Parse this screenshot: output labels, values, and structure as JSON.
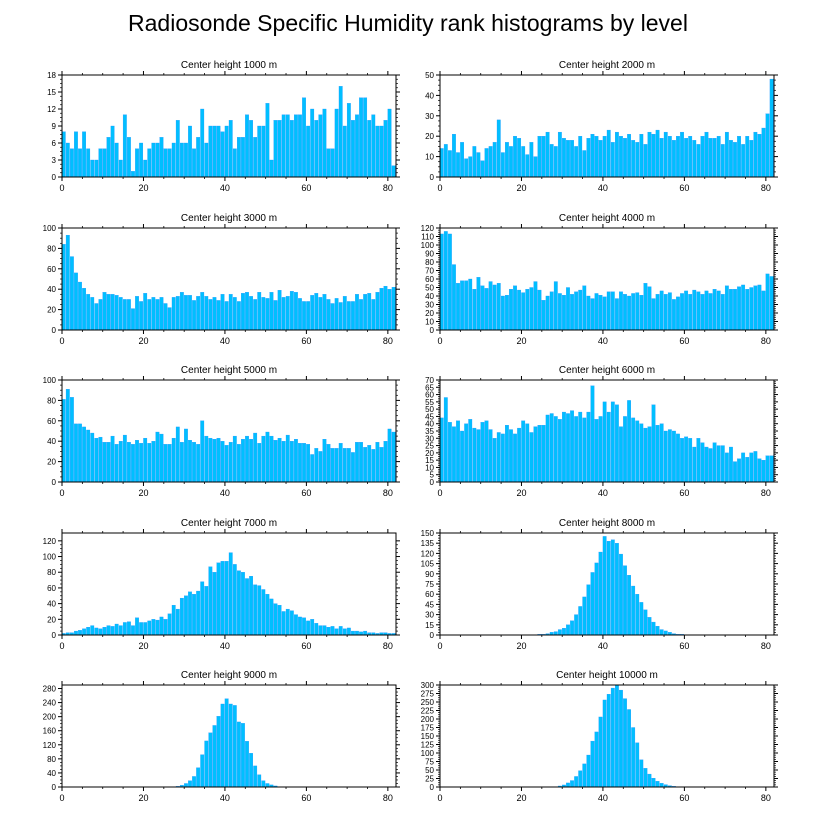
{
  "title": "Radiosonde Specific Humidity rank histograms by level",
  "colors": {
    "bar": "#00BFFF",
    "bar_edge": "#1E90FF",
    "axis": "#000000"
  },
  "chart_data": [
    {
      "type": "bar",
      "title": "Center height 1000 m",
      "xlim": [
        0,
        82
      ],
      "ylim": [
        0,
        18
      ],
      "xticks": [
        0,
        20,
        40,
        60,
        80
      ],
      "yticks": [
        0,
        3,
        6,
        9,
        12,
        15,
        18
      ],
      "values": [
        8,
        6,
        5,
        8,
        5,
        8,
        5,
        3,
        3,
        5,
        5,
        7,
        9,
        6,
        3,
        11,
        7,
        1,
        5,
        6,
        3,
        5,
        6,
        6,
        7,
        5,
        5,
        6,
        10,
        6,
        6,
        9,
        5,
        7,
        12,
        6,
        9,
        9,
        9,
        8,
        9,
        10,
        5,
        7,
        7,
        11,
        10,
        7,
        9,
        9,
        13,
        3,
        10,
        10,
        11,
        11,
        10,
        11,
        11,
        14,
        9,
        12,
        10,
        11,
        12,
        5,
        5,
        12,
        16,
        9,
        13,
        10,
        11,
        14,
        14,
        10,
        11,
        9,
        9,
        10,
        12,
        2
      ]
    },
    {
      "type": "bar",
      "title": "Center height 2000 m",
      "xlim": [
        0,
        82
      ],
      "ylim": [
        0,
        50
      ],
      "xticks": [
        0,
        20,
        40,
        60,
        80
      ],
      "yticks": [
        0,
        10,
        20,
        30,
        40,
        50
      ],
      "values": [
        14,
        16,
        13,
        21,
        12,
        17,
        9,
        10,
        15,
        12,
        8,
        14,
        15,
        17,
        28,
        12,
        17,
        15,
        20,
        19,
        15,
        11,
        17,
        10,
        20,
        20,
        22,
        16,
        15,
        22,
        19,
        18,
        18,
        15,
        20,
        13,
        19,
        21,
        20,
        18,
        20,
        23,
        17,
        22,
        20,
        19,
        21,
        18,
        17,
        21,
        16,
        22,
        21,
        23,
        19,
        22,
        20,
        18,
        20,
        22,
        19,
        20,
        18,
        16,
        20,
        22,
        19,
        19,
        20,
        16,
        22,
        18,
        17,
        20,
        16,
        20,
        18,
        22,
        21,
        24,
        31,
        48
      ]
    },
    {
      "type": "bar",
      "title": "Center height 3000 m",
      "xlim": [
        0,
        82
      ],
      "ylim": [
        0,
        100
      ],
      "xticks": [
        0,
        20,
        40,
        60,
        80
      ],
      "yticks": [
        0,
        20,
        40,
        60,
        80,
        100
      ],
      "values": [
        84,
        93,
        72,
        56,
        47,
        41,
        35,
        32,
        26,
        30,
        37,
        35,
        35,
        34,
        32,
        30,
        30,
        21,
        33,
        28,
        36,
        30,
        32,
        30,
        32,
        26,
        22,
        32,
        33,
        37,
        34,
        34,
        29,
        33,
        37,
        33,
        30,
        32,
        29,
        35,
        28,
        35,
        32,
        28,
        36,
        37,
        33,
        30,
        37,
        32,
        31,
        37,
        29,
        39,
        32,
        33,
        38,
        37,
        31,
        28,
        28,
        34,
        36,
        32,
        35,
        30,
        26,
        31,
        27,
        33,
        28,
        28,
        35,
        30,
        35,
        36,
        30,
        37,
        41,
        43,
        40,
        42
      ]
    },
    {
      "type": "bar",
      "title": "Center height 4000 m",
      "xlim": [
        0,
        82
      ],
      "ylim": [
        0,
        120
      ],
      "xticks": [
        0,
        20,
        40,
        60,
        80
      ],
      "yticks": [
        0,
        10,
        20,
        30,
        40,
        50,
        60,
        70,
        80,
        90,
        100,
        110,
        120
      ],
      "values": [
        113,
        116,
        113,
        77,
        55,
        58,
        58,
        60,
        48,
        62,
        52,
        49,
        57,
        53,
        55,
        40,
        41,
        48,
        52,
        47,
        44,
        48,
        50,
        57,
        47,
        35,
        40,
        45,
        57,
        43,
        41,
        50,
        42,
        45,
        47,
        52,
        40,
        37,
        43,
        41,
        39,
        45,
        45,
        37,
        45,
        42,
        40,
        43,
        44,
        41,
        55,
        51,
        37,
        42,
        46,
        42,
        44,
        36,
        39,
        43,
        46,
        42,
        47,
        45,
        42,
        46,
        43,
        48,
        46,
        42,
        52,
        48,
        48,
        51,
        53,
        48,
        50,
        52,
        53,
        46,
        66,
        63
      ]
    },
    {
      "type": "bar",
      "title": "Center height 5000 m",
      "xlim": [
        0,
        82
      ],
      "ylim": [
        0,
        100
      ],
      "xticks": [
        0,
        20,
        40,
        60,
        80
      ],
      "yticks": [
        0,
        20,
        40,
        60,
        80,
        100
      ],
      "values": [
        81,
        91,
        83,
        57,
        57,
        54,
        51,
        48,
        43,
        44,
        39,
        39,
        45,
        37,
        40,
        46,
        39,
        37,
        41,
        38,
        43,
        38,
        40,
        49,
        47,
        37,
        37,
        43,
        54,
        39,
        52,
        41,
        39,
        37,
        60,
        45,
        43,
        42,
        43,
        40,
        36,
        39,
        45,
        37,
        42,
        45,
        42,
        48,
        38,
        45,
        49,
        45,
        41,
        43,
        40,
        46,
        40,
        42,
        38,
        38,
        37,
        27,
        33,
        30,
        42,
        37,
        33,
        33,
        38,
        33,
        33,
        29,
        39,
        39,
        34,
        36,
        32,
        39,
        34,
        40,
        52,
        49
      ]
    },
    {
      "type": "bar",
      "title": "Center height 6000 m",
      "xlim": [
        0,
        82
      ],
      "ylim": [
        0,
        70
      ],
      "xticks": [
        0,
        20,
        40,
        60,
        80
      ],
      "yticks": [
        0,
        5,
        10,
        15,
        20,
        25,
        30,
        35,
        40,
        45,
        50,
        55,
        60,
        65,
        70
      ],
      "values": [
        44,
        58,
        41,
        38,
        42,
        35,
        40,
        43,
        37,
        36,
        41,
        42,
        36,
        30,
        34,
        33,
        39,
        36,
        33,
        37,
        42,
        40,
        34,
        38,
        39,
        39,
        46,
        47,
        45,
        43,
        48,
        47,
        49,
        45,
        48,
        44,
        48,
        66,
        43,
        45,
        55,
        48,
        55,
        53,
        38,
        45,
        56,
        44,
        42,
        40,
        37,
        38,
        53,
        39,
        40,
        35,
        36,
        35,
        33,
        30,
        31,
        30,
        24,
        30,
        27,
        24,
        23,
        27,
        25,
        25,
        20,
        24,
        14,
        16,
        20,
        17,
        20,
        21,
        16,
        15,
        18,
        18
      ]
    },
    {
      "type": "bar",
      "title": "Center height 7000 m",
      "xlim": [
        0,
        82
      ],
      "ylim": [
        0,
        130
      ],
      "xticks": [
        0,
        20,
        40,
        60,
        80
      ],
      "yticks": [
        0,
        20,
        40,
        60,
        80,
        100,
        120
      ],
      "values": [
        2,
        3,
        3,
        5,
        6,
        8,
        10,
        12,
        9,
        8,
        10,
        12,
        11,
        14,
        12,
        16,
        17,
        12,
        22,
        16,
        16,
        18,
        20,
        19,
        23,
        20,
        27,
        38,
        33,
        47,
        50,
        55,
        52,
        56,
        68,
        62,
        87,
        80,
        92,
        94,
        94,
        105,
        90,
        82,
        80,
        72,
        75,
        64,
        63,
        58,
        52,
        46,
        40,
        38,
        30,
        33,
        31,
        26,
        23,
        22,
        18,
        20,
        15,
        12,
        12,
        10,
        11,
        8,
        11,
        8,
        9,
        5,
        5,
        4,
        5,
        3,
        3,
        2,
        3,
        3,
        2,
        2
      ]
    },
    {
      "type": "bar",
      "title": "Center height 8000 m",
      "xlim": [
        0,
        82
      ],
      "ylim": [
        0,
        150
      ],
      "xticks": [
        0,
        20,
        40,
        60,
        80
      ],
      "yticks": [
        0,
        15,
        30,
        45,
        60,
        75,
        90,
        105,
        120,
        135,
        150
      ],
      "values": [
        0,
        0,
        0,
        0,
        0,
        0,
        0,
        0,
        0,
        0,
        0,
        0,
        0,
        0,
        0,
        0,
        0,
        0,
        0,
        0,
        0,
        0,
        0,
        0,
        1,
        1,
        2,
        4,
        5,
        8,
        10,
        15,
        21,
        30,
        42,
        56,
        74,
        92,
        106,
        122,
        145,
        138,
        140,
        135,
        119,
        102,
        88,
        72,
        60,
        48,
        37,
        26,
        19,
        13,
        8,
        6,
        4,
        2,
        1,
        1,
        0,
        0,
        0,
        0,
        0,
        0,
        0,
        0,
        0,
        0,
        0,
        0,
        0,
        0,
        0,
        0,
        0,
        0,
        0,
        0,
        0,
        0
      ]
    },
    {
      "type": "bar",
      "title": "Center height 9000 m",
      "xlim": [
        0,
        82
      ],
      "ylim": [
        0,
        290
      ],
      "xticks": [
        0,
        20,
        40,
        60,
        80
      ],
      "yticks": [
        0,
        40,
        80,
        120,
        160,
        200,
        240,
        280
      ],
      "values": [
        0,
        0,
        0,
        0,
        0,
        0,
        0,
        0,
        0,
        0,
        0,
        0,
        0,
        0,
        0,
        0,
        0,
        0,
        0,
        0,
        0,
        0,
        0,
        0,
        0,
        0,
        0,
        0,
        2,
        5,
        10,
        18,
        30,
        55,
        92,
        131,
        154,
        175,
        201,
        236,
        251,
        236,
        232,
        185,
        181,
        130,
        96,
        60,
        35,
        18,
        10,
        6,
        3,
        1,
        0,
        0,
        0,
        0,
        0,
        0,
        0,
        0,
        0,
        0,
        0,
        0,
        0,
        0,
        0,
        0,
        0,
        0,
        0,
        0,
        0,
        0,
        0,
        0,
        0,
        0,
        0,
        0
      ]
    },
    {
      "type": "bar",
      "title": "Center height 10000 m",
      "xlim": [
        0,
        82
      ],
      "ylim": [
        0,
        300
      ],
      "xticks": [
        0,
        20,
        40,
        60,
        80
      ],
      "yticks": [
        0,
        25,
        50,
        75,
        100,
        125,
        150,
        175,
        200,
        225,
        250,
        275,
        300
      ],
      "values": [
        0,
        0,
        0,
        0,
        0,
        0,
        0,
        0,
        0,
        0,
        0,
        0,
        0,
        0,
        0,
        0,
        0,
        0,
        0,
        0,
        0,
        0,
        0,
        0,
        0,
        0,
        0,
        0,
        1,
        3,
        6,
        12,
        19,
        31,
        48,
        68,
        94,
        135,
        162,
        206,
        256,
        273,
        291,
        300,
        285,
        260,
        228,
        175,
        130,
        80,
        55,
        38,
        26,
        17,
        11,
        7,
        4,
        2,
        1,
        1,
        0,
        0,
        0,
        0,
        0,
        0,
        0,
        0,
        0,
        0,
        0,
        0,
        0,
        0,
        0,
        0,
        0,
        0,
        0,
        0,
        0,
        0
      ]
    }
  ]
}
